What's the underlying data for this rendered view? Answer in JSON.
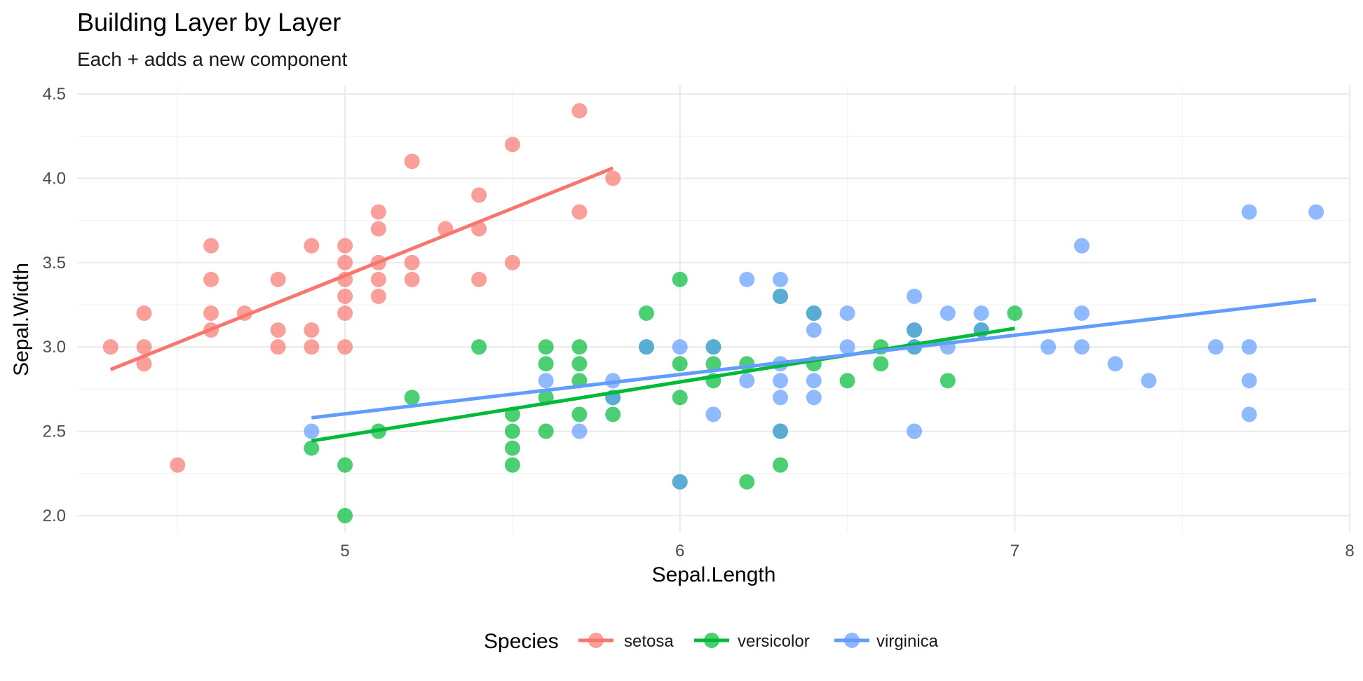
{
  "chart_data": {
    "type": "scatter",
    "title": "Building Layer by Layer",
    "subtitle": "Each + adds a new component",
    "xlabel": "Sepal.Length",
    "ylabel": "Sepal.Width",
    "xlim": [
      4.2,
      8.0
    ],
    "ylim": [
      1.9,
      4.5
    ],
    "x_ticks": [
      "5",
      "6",
      "7",
      "8"
    ],
    "y_ticks": [
      "2.0",
      "2.5",
      "3.0",
      "3.5",
      "4.0",
      "4.5"
    ],
    "grid": true,
    "legend": {
      "title": "Species",
      "position": "bottom"
    },
    "series": [
      {
        "name": "setosa",
        "color": "#F8766D",
        "points": [
          [
            4.3,
            3.0
          ],
          [
            4.4,
            2.9
          ],
          [
            4.4,
            3.0
          ],
          [
            4.4,
            3.2
          ],
          [
            4.5,
            2.3
          ],
          [
            4.6,
            3.1
          ],
          [
            4.6,
            3.2
          ],
          [
            4.6,
            3.4
          ],
          [
            4.6,
            3.6
          ],
          [
            4.7,
            3.2
          ],
          [
            4.8,
            3.0
          ],
          [
            4.8,
            3.1
          ],
          [
            4.8,
            3.4
          ],
          [
            4.9,
            3.0
          ],
          [
            4.9,
            3.1
          ],
          [
            4.9,
            3.6
          ],
          [
            5.0,
            3.0
          ],
          [
            5.0,
            3.2
          ],
          [
            5.0,
            3.3
          ],
          [
            5.0,
            3.4
          ],
          [
            5.0,
            3.5
          ],
          [
            5.0,
            3.6
          ],
          [
            5.1,
            3.3
          ],
          [
            5.1,
            3.4
          ],
          [
            5.1,
            3.5
          ],
          [
            5.1,
            3.7
          ],
          [
            5.1,
            3.8
          ],
          [
            5.2,
            3.4
          ],
          [
            5.2,
            3.5
          ],
          [
            5.2,
            4.1
          ],
          [
            5.3,
            3.7
          ],
          [
            5.4,
            3.4
          ],
          [
            5.4,
            3.7
          ],
          [
            5.4,
            3.9
          ],
          [
            5.5,
            3.5
          ],
          [
            5.5,
            4.2
          ],
          [
            5.7,
            3.8
          ],
          [
            5.7,
            4.4
          ],
          [
            5.8,
            4.0
          ]
        ],
        "fit": [
          [
            4.3,
            2.866
          ],
          [
            5.8,
            4.06
          ]
        ]
      },
      {
        "name": "versicolor",
        "color": "#00BA38",
        "points": [
          [
            4.9,
            2.4
          ],
          [
            5.0,
            2.0
          ],
          [
            5.0,
            2.3
          ],
          [
            5.1,
            2.5
          ],
          [
            5.2,
            2.7
          ],
          [
            5.4,
            3.0
          ],
          [
            5.5,
            2.3
          ],
          [
            5.5,
            2.4
          ],
          [
            5.5,
            2.5
          ],
          [
            5.5,
            2.6
          ],
          [
            5.6,
            2.5
          ],
          [
            5.6,
            2.7
          ],
          [
            5.6,
            2.9
          ],
          [
            5.6,
            3.0
          ],
          [
            5.7,
            2.6
          ],
          [
            5.7,
            2.8
          ],
          [
            5.7,
            2.9
          ],
          [
            5.7,
            3.0
          ],
          [
            5.8,
            2.6
          ],
          [
            5.8,
            2.7
          ],
          [
            5.9,
            3.0
          ],
          [
            5.9,
            3.2
          ],
          [
            6.0,
            2.2
          ],
          [
            6.0,
            2.7
          ],
          [
            6.0,
            2.9
          ],
          [
            6.0,
            3.4
          ],
          [
            6.1,
            2.8
          ],
          [
            6.1,
            2.9
          ],
          [
            6.1,
            3.0
          ],
          [
            6.2,
            2.2
          ],
          [
            6.2,
            2.9
          ],
          [
            6.3,
            2.3
          ],
          [
            6.3,
            2.5
          ],
          [
            6.3,
            3.3
          ],
          [
            6.4,
            2.9
          ],
          [
            6.4,
            3.2
          ],
          [
            6.5,
            2.8
          ],
          [
            6.6,
            2.9
          ],
          [
            6.6,
            3.0
          ],
          [
            6.7,
            3.0
          ],
          [
            6.7,
            3.1
          ],
          [
            6.8,
            2.8
          ],
          [
            6.9,
            3.1
          ],
          [
            7.0,
            3.2
          ]
        ],
        "fit": [
          [
            4.9,
            2.443
          ],
          [
            7.0,
            3.11
          ]
        ]
      },
      {
        "name": "virginica",
        "color": "#619CFF",
        "points": [
          [
            4.9,
            2.5
          ],
          [
            5.6,
            2.8
          ],
          [
            5.7,
            2.5
          ],
          [
            5.8,
            2.7
          ],
          [
            5.8,
            2.8
          ],
          [
            5.9,
            3.0
          ],
          [
            6.0,
            2.2
          ],
          [
            6.0,
            3.0
          ],
          [
            6.1,
            2.6
          ],
          [
            6.1,
            3.0
          ],
          [
            6.2,
            2.8
          ],
          [
            6.2,
            3.4
          ],
          [
            6.3,
            2.5
          ],
          [
            6.3,
            2.7
          ],
          [
            6.3,
            2.8
          ],
          [
            6.3,
            2.9
          ],
          [
            6.3,
            3.3
          ],
          [
            6.3,
            3.4
          ],
          [
            6.4,
            2.7
          ],
          [
            6.4,
            2.8
          ],
          [
            6.4,
            3.1
          ],
          [
            6.4,
            3.2
          ],
          [
            6.5,
            3.0
          ],
          [
            6.5,
            3.2
          ],
          [
            6.7,
            2.5
          ],
          [
            6.7,
            3.0
          ],
          [
            6.7,
            3.1
          ],
          [
            6.7,
            3.3
          ],
          [
            6.8,
            3.0
          ],
          [
            6.8,
            3.2
          ],
          [
            6.9,
            3.1
          ],
          [
            6.9,
            3.2
          ],
          [
            7.1,
            3.0
          ],
          [
            7.2,
            3.0
          ],
          [
            7.2,
            3.2
          ],
          [
            7.2,
            3.6
          ],
          [
            7.3,
            2.9
          ],
          [
            7.4,
            2.8
          ],
          [
            7.6,
            3.0
          ],
          [
            7.7,
            2.6
          ],
          [
            7.7,
            2.8
          ],
          [
            7.7,
            3.0
          ],
          [
            7.7,
            3.8
          ],
          [
            7.9,
            3.8
          ]
        ],
        "fit": [
          [
            4.9,
            2.58
          ],
          [
            7.9,
            3.279
          ]
        ]
      }
    ]
  }
}
